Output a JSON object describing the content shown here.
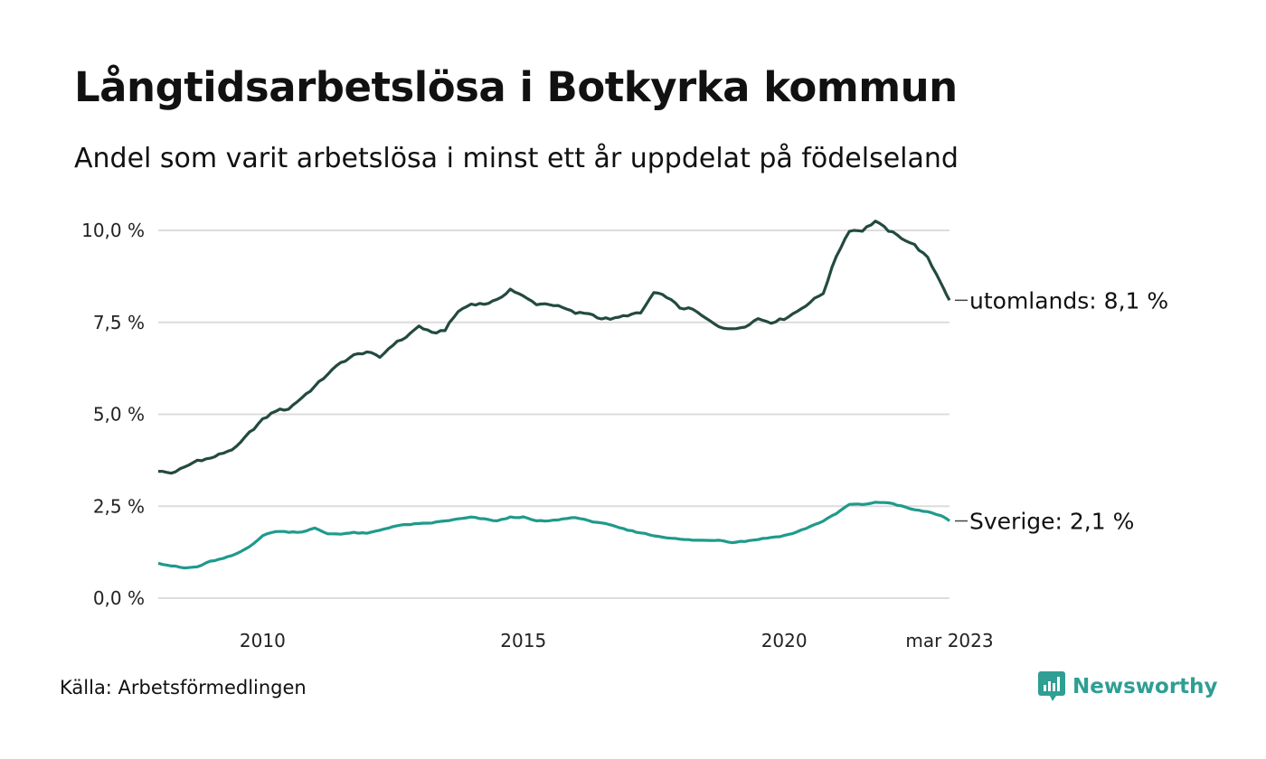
{
  "title": "Långtidsarbetslösa i Botkyrka kommun",
  "subtitle": "Andel som varit arbetslösa i minst ett år uppdelat på födelseland",
  "source": "Källa: Arbetsförmedlingen",
  "brand": {
    "name": "Newsworthy",
    "icon": "newsworthy-logo-icon"
  },
  "colors": {
    "utomlands": "#234a41",
    "sverige": "#1f9a8c",
    "grid": "#dcdcdc",
    "brand": "#2f9e93"
  },
  "chart_data": {
    "type": "line",
    "title": "Långtidsarbetslösa i Botkyrka kommun",
    "subtitle": "Andel som varit arbetslösa i minst ett år uppdelat på födelseland",
    "x_range": [
      2008.0,
      2023.17
    ],
    "ylim": [
      0,
      10
    ],
    "yticks": [
      0,
      2.5,
      5,
      7.5,
      10
    ],
    "ytick_labels": [
      "0,0 %",
      "2,5 %",
      "5,0 %",
      "7,5 %",
      "10,0 %"
    ],
    "xticks": [
      2010,
      2015,
      2020,
      2023.17
    ],
    "xtick_labels": [
      "2010",
      "2015",
      "2020",
      "mar 2023"
    ],
    "grid": true,
    "legend": "end-of-line labels",
    "series": [
      {
        "name": "utomlands",
        "end_label": "utomlands: 8,1 %",
        "color": "#234a41",
        "points": [
          [
            2008.0,
            3.45
          ],
          [
            2008.25,
            3.4
          ],
          [
            2008.5,
            3.55
          ],
          [
            2008.75,
            3.75
          ],
          [
            2009.0,
            3.8
          ],
          [
            2009.25,
            3.95
          ],
          [
            2009.5,
            4.1
          ],
          [
            2009.75,
            4.5
          ],
          [
            2010.0,
            4.85
          ],
          [
            2010.25,
            5.1
          ],
          [
            2010.5,
            5.15
          ],
          [
            2010.75,
            5.45
          ],
          [
            2011.0,
            5.75
          ],
          [
            2011.25,
            6.1
          ],
          [
            2011.5,
            6.4
          ],
          [
            2011.75,
            6.6
          ],
          [
            2012.0,
            6.7
          ],
          [
            2012.25,
            6.55
          ],
          [
            2012.5,
            6.9
          ],
          [
            2012.75,
            7.1
          ],
          [
            2013.0,
            7.4
          ],
          [
            2013.25,
            7.2
          ],
          [
            2013.5,
            7.3
          ],
          [
            2013.75,
            7.8
          ],
          [
            2014.0,
            8.0
          ],
          [
            2014.25,
            8.0
          ],
          [
            2014.5,
            8.1
          ],
          [
            2014.75,
            8.4
          ],
          [
            2015.0,
            8.2
          ],
          [
            2015.25,
            8.0
          ],
          [
            2015.5,
            8.0
          ],
          [
            2015.75,
            7.9
          ],
          [
            2016.0,
            7.75
          ],
          [
            2016.25,
            7.75
          ],
          [
            2016.5,
            7.6
          ],
          [
            2016.75,
            7.6
          ],
          [
            2017.0,
            7.7
          ],
          [
            2017.25,
            7.75
          ],
          [
            2017.5,
            8.3
          ],
          [
            2017.75,
            8.2
          ],
          [
            2018.0,
            7.9
          ],
          [
            2018.25,
            7.85
          ],
          [
            2018.5,
            7.6
          ],
          [
            2018.75,
            7.4
          ],
          [
            2019.0,
            7.3
          ],
          [
            2019.25,
            7.4
          ],
          [
            2019.5,
            7.6
          ],
          [
            2019.75,
            7.5
          ],
          [
            2020.0,
            7.6
          ],
          [
            2020.25,
            7.8
          ],
          [
            2020.5,
            8.05
          ],
          [
            2020.75,
            8.3
          ],
          [
            2021.0,
            9.3
          ],
          [
            2021.25,
            10.0
          ],
          [
            2021.5,
            10.0
          ],
          [
            2021.75,
            10.25
          ],
          [
            2022.0,
            10.0
          ],
          [
            2022.25,
            9.8
          ],
          [
            2022.5,
            9.6
          ],
          [
            2022.75,
            9.25
          ],
          [
            2023.0,
            8.6
          ],
          [
            2023.17,
            8.1
          ]
        ]
      },
      {
        "name": "Sverige",
        "end_label": "Sverige: 2,1 %",
        "color": "#1f9a8c",
        "points": [
          [
            2008.0,
            0.95
          ],
          [
            2008.25,
            0.88
          ],
          [
            2008.5,
            0.82
          ],
          [
            2008.75,
            0.85
          ],
          [
            2009.0,
            1.0
          ],
          [
            2009.25,
            1.08
          ],
          [
            2009.5,
            1.2
          ],
          [
            2009.75,
            1.4
          ],
          [
            2010.0,
            1.7
          ],
          [
            2010.25,
            1.82
          ],
          [
            2010.5,
            1.8
          ],
          [
            2010.75,
            1.8
          ],
          [
            2011.0,
            1.9
          ],
          [
            2011.25,
            1.75
          ],
          [
            2011.5,
            1.75
          ],
          [
            2011.75,
            1.78
          ],
          [
            2012.0,
            1.76
          ],
          [
            2012.25,
            1.85
          ],
          [
            2012.5,
            1.95
          ],
          [
            2012.75,
            2.0
          ],
          [
            2013.0,
            2.02
          ],
          [
            2013.25,
            2.05
          ],
          [
            2013.5,
            2.1
          ],
          [
            2013.75,
            2.15
          ],
          [
            2014.0,
            2.2
          ],
          [
            2014.25,
            2.15
          ],
          [
            2014.5,
            2.1
          ],
          [
            2014.75,
            2.2
          ],
          [
            2015.0,
            2.2
          ],
          [
            2015.25,
            2.1
          ],
          [
            2015.5,
            2.1
          ],
          [
            2015.75,
            2.15
          ],
          [
            2016.0,
            2.2
          ],
          [
            2016.25,
            2.1
          ],
          [
            2016.5,
            2.05
          ],
          [
            2016.75,
            1.95
          ],
          [
            2017.0,
            1.85
          ],
          [
            2017.25,
            1.78
          ],
          [
            2017.5,
            1.7
          ],
          [
            2017.75,
            1.65
          ],
          [
            2018.0,
            1.6
          ],
          [
            2018.25,
            1.58
          ],
          [
            2018.5,
            1.57
          ],
          [
            2018.75,
            1.58
          ],
          [
            2019.0,
            1.52
          ],
          [
            2019.25,
            1.55
          ],
          [
            2019.5,
            1.6
          ],
          [
            2019.75,
            1.65
          ],
          [
            2020.0,
            1.7
          ],
          [
            2020.25,
            1.8
          ],
          [
            2020.5,
            1.95
          ],
          [
            2020.75,
            2.1
          ],
          [
            2021.0,
            2.3
          ],
          [
            2021.25,
            2.55
          ],
          [
            2021.5,
            2.55
          ],
          [
            2021.75,
            2.6
          ],
          [
            2022.0,
            2.6
          ],
          [
            2022.25,
            2.5
          ],
          [
            2022.5,
            2.4
          ],
          [
            2022.75,
            2.35
          ],
          [
            2023.0,
            2.25
          ],
          [
            2023.17,
            2.1
          ]
        ]
      }
    ]
  }
}
